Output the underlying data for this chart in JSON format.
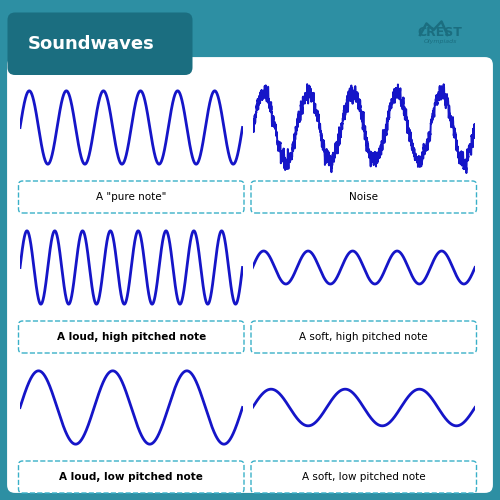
{
  "title": "Soundwaves",
  "title_bg": "#1b6e80",
  "outer_bg": "#2d8fa3",
  "inner_bg": "#ffffff",
  "wave_color": "#1515c8",
  "wave_lw": 2.0,
  "label_color": "#1515c8",
  "label_border": "#3ab0c8",
  "panels": [
    {
      "label": "A \"pure note\"",
      "type": "pure",
      "freq": 6,
      "amp": 1.0,
      "label_bold": false
    },
    {
      "label": "Noise",
      "type": "noise",
      "freq": 5,
      "amp": 1.0,
      "label_bold": false
    },
    {
      "label": "A loud, high pitched note",
      "type": "loud_high",
      "freq": 8,
      "amp": 1.0,
      "label_bold": true
    },
    {
      "label": "A soft, high pitched note",
      "type": "soft_high",
      "freq": 5,
      "amp": 0.45,
      "label_bold": false
    },
    {
      "label": "A loud, low pitched note",
      "type": "loud_low",
      "freq": 3,
      "amp": 1.0,
      "label_bold": true
    },
    {
      "label": "A soft, low pitched note",
      "type": "soft_low",
      "freq": 3,
      "amp": 0.5,
      "label_bold": false
    }
  ],
  "fig_size": [
    5.0,
    5.0
  ],
  "dpi": 100
}
